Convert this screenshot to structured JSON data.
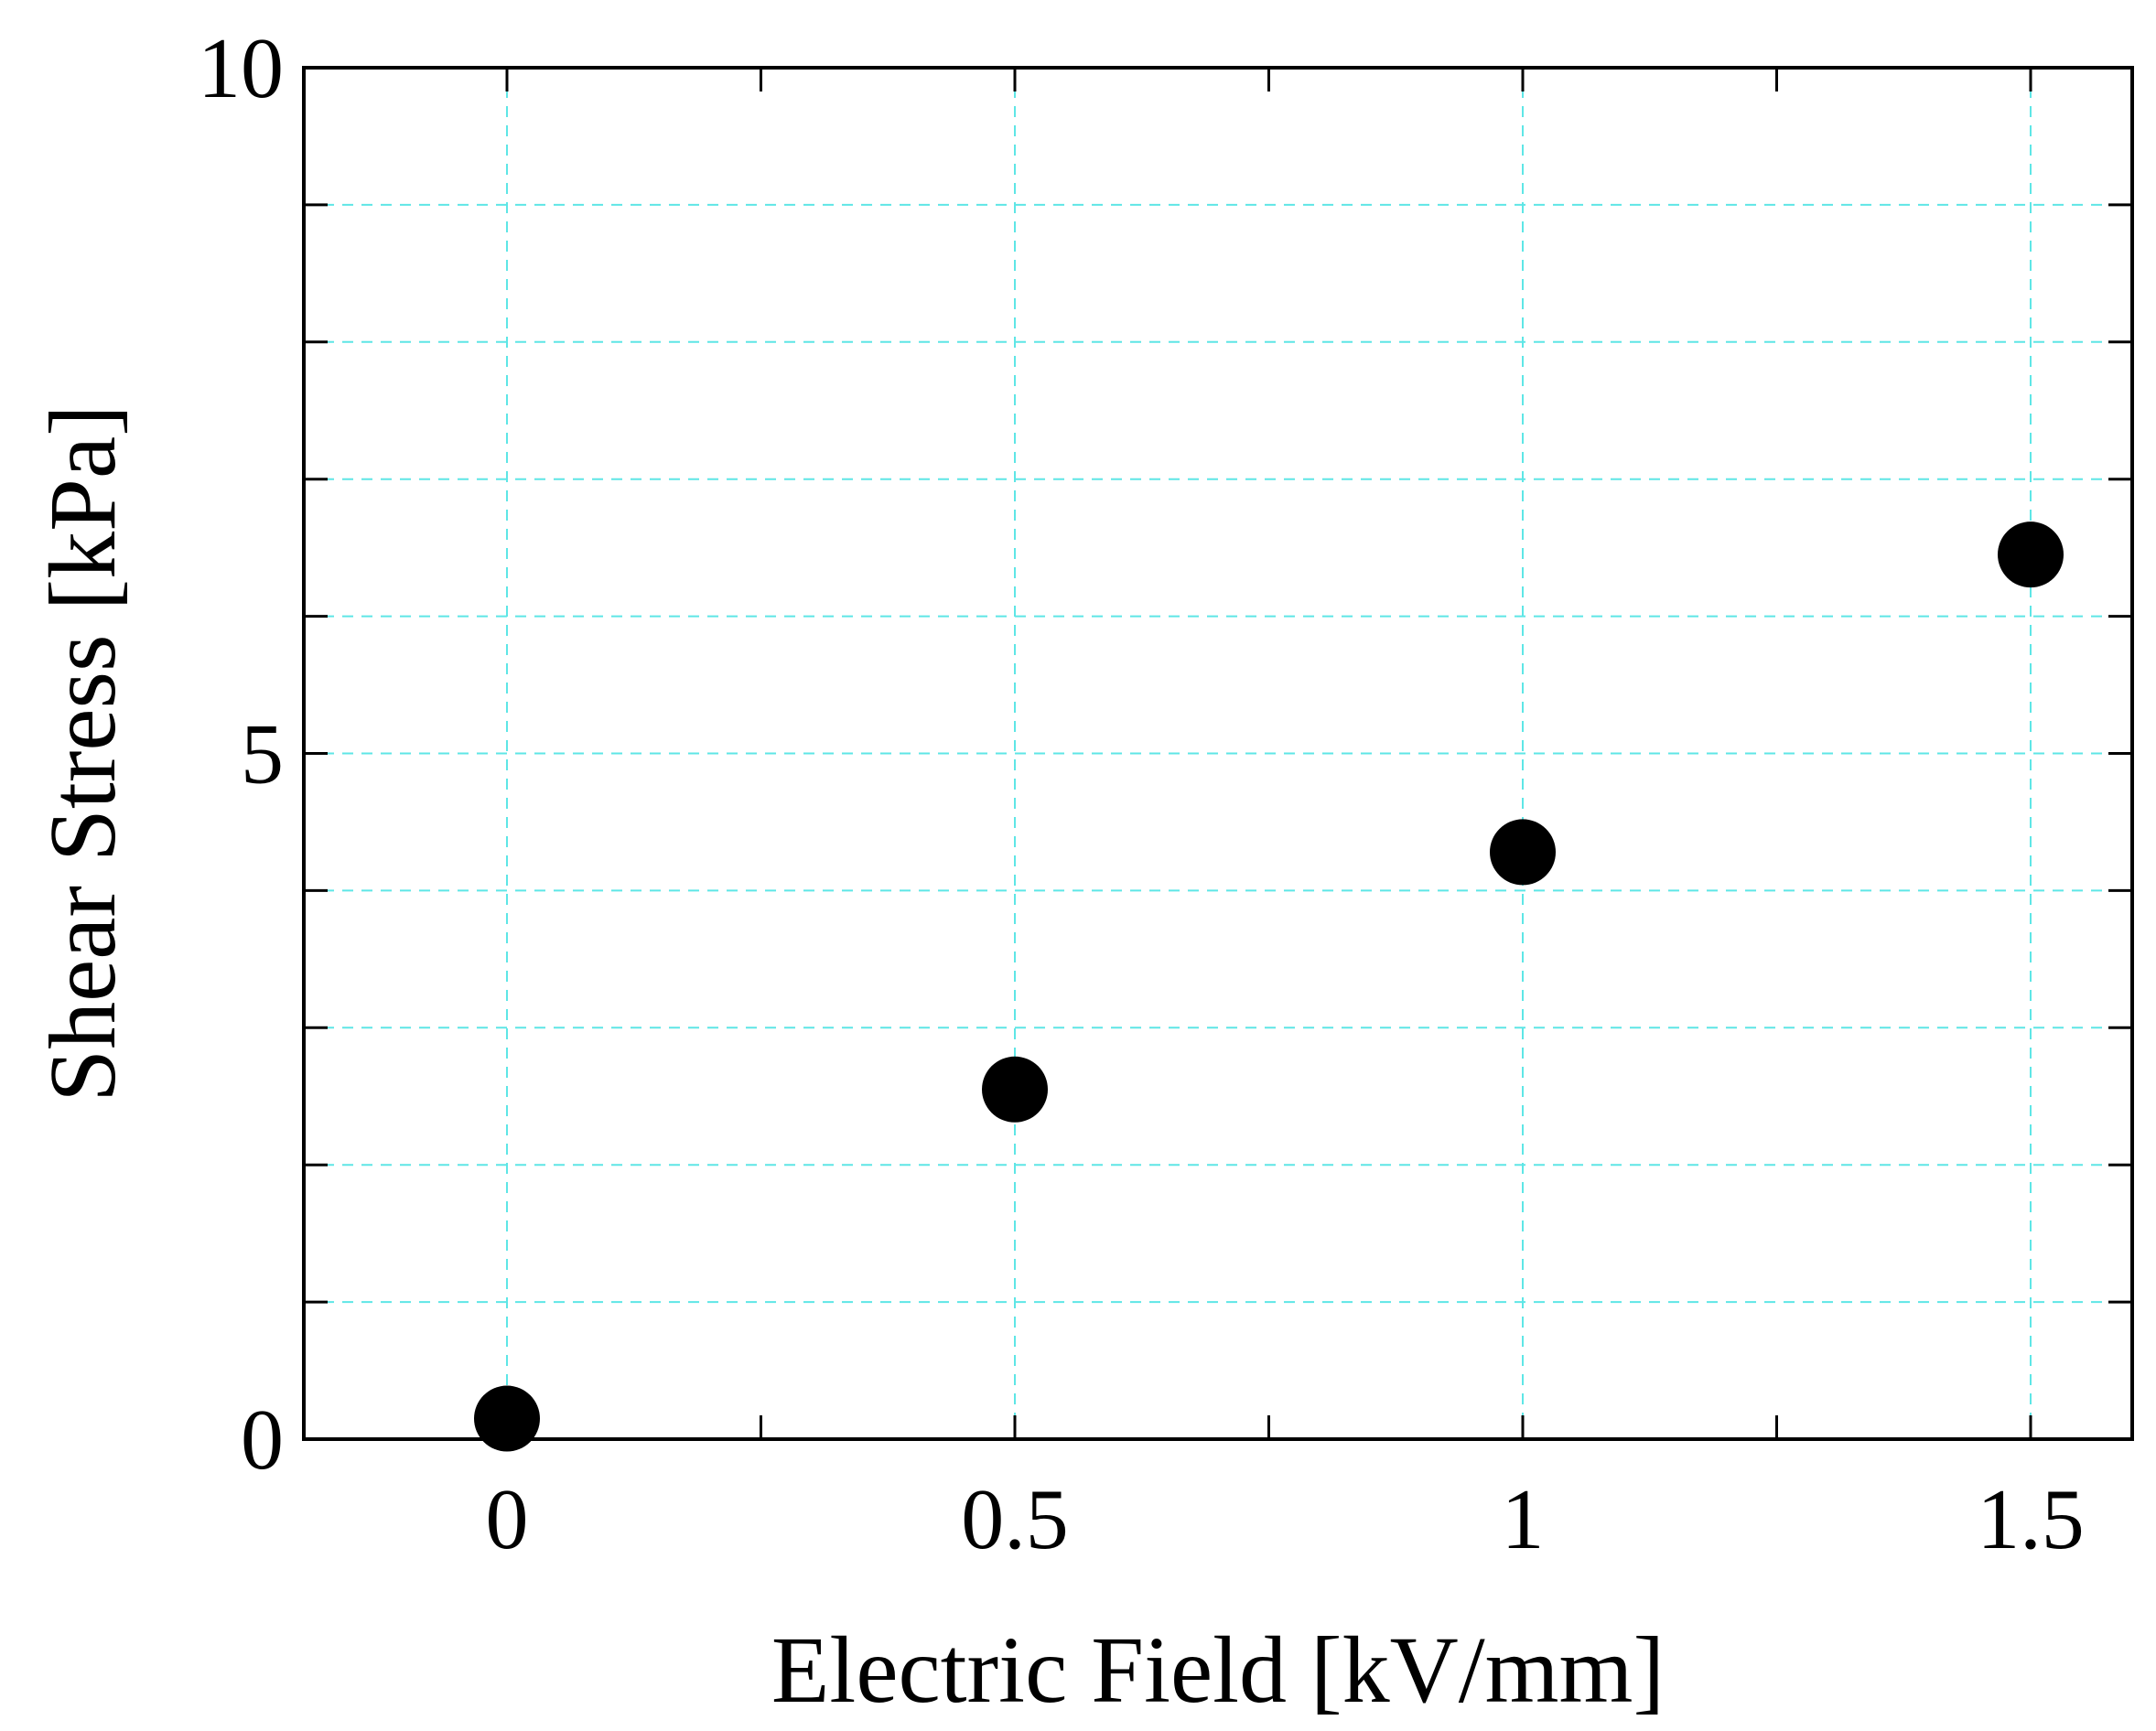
{
  "chart_data": {
    "type": "scatter",
    "xlabel": "Electric Field [kV/mm]",
    "ylabel": "Shear Stress [kPa]",
    "xlim": [
      -0.2,
      1.6
    ],
    "ylim": [
      0,
      10
    ],
    "x_ticks": [
      0,
      0.5,
      1,
      1.5
    ],
    "x_tick_labels": [
      "0",
      "0.5",
      "1",
      "1.5"
    ],
    "x_minor_ticks": [
      0.25,
      0.75,
      1.25
    ],
    "y_ticks": [
      0,
      5,
      10
    ],
    "y_tick_labels": [
      "0",
      "5",
      "10"
    ],
    "y_minor_ticks": [
      1,
      2,
      3,
      4,
      6,
      7,
      8,
      9
    ],
    "grid": true,
    "grid_color": "#5ee6e6",
    "marker_color": "#000000",
    "series": [
      {
        "x": [
          0,
          0.5,
          1,
          1.5
        ],
        "y": [
          0.15,
          2.55,
          4.28,
          6.45
        ]
      }
    ]
  }
}
